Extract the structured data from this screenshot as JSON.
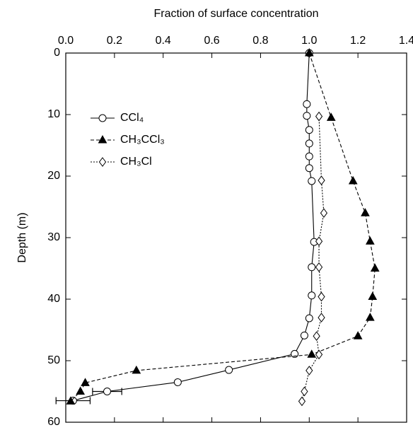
{
  "chart_data": {
    "type": "scatter",
    "xlabel": "Fraction of surface concentration",
    "ylabel": "Depth (m)",
    "xlim": [
      0,
      1.4
    ],
    "xticks": [
      {
        "value": 0,
        "label": "0.0"
      },
      0.2,
      0.4,
      0.6,
      0.8,
      {
        "value": 1,
        "label": "1.0"
      },
      1.2,
      1.4
    ],
    "ylim": [
      0,
      60
    ],
    "yticks": [
      0,
      10,
      20,
      30,
      40,
      50,
      60
    ],
    "y_inverted": true,
    "x_axis_position": "top",
    "legend": "upper left",
    "series": [
      {
        "name": "CCl₄",
        "color": "#000000",
        "marker": "circle",
        "line": "solid",
        "x": [
          1.0,
          0.99,
          0.99,
          1.0,
          1.0,
          1.0,
          1.0,
          1.01,
          1.02,
          1.01,
          1.01,
          1.0,
          0.98,
          0.94,
          0.67,
          0.46,
          0.17,
          0.03
        ],
        "y": [
          0,
          8.3,
          10.2,
          12.5,
          14.7,
          16.8,
          18.7,
          20.8,
          30.7,
          34.8,
          39.4,
          43.1,
          45.9,
          48.9,
          51.5,
          53.5,
          55,
          56.5
        ],
        "xerr": [
          null,
          null,
          null,
          null,
          null,
          null,
          null,
          null,
          null,
          null,
          null,
          null,
          null,
          null,
          null,
          null,
          0.06,
          0.07
        ]
      },
      {
        "name": "CH₃CCl₃",
        "color": "#000000",
        "marker": "triangle",
        "line": "dashed",
        "x": [
          1.0,
          1.09,
          1.18,
          1.23,
          1.25,
          1.27,
          1.26,
          1.25,
          1.2,
          1.01,
          0.29,
          0.08,
          0.06,
          0.02
        ],
        "y": [
          0,
          10.5,
          20.8,
          26,
          30.6,
          35,
          39.6,
          43,
          46,
          49,
          51.6,
          53.6,
          55,
          56.6
        ]
      },
      {
        "name": "CH₃Cl",
        "color": "#000000",
        "marker": "diamond",
        "line": "dotted",
        "x": [
          1.04,
          1.05,
          1.06,
          1.04,
          1.04,
          1.05,
          1.05,
          1.03,
          1.04,
          1.0,
          0.98,
          0.97
        ],
        "y": [
          10.3,
          20.7,
          26,
          30.6,
          34.8,
          39.6,
          43,
          46,
          49,
          51.6,
          55,
          56.6
        ]
      }
    ]
  }
}
